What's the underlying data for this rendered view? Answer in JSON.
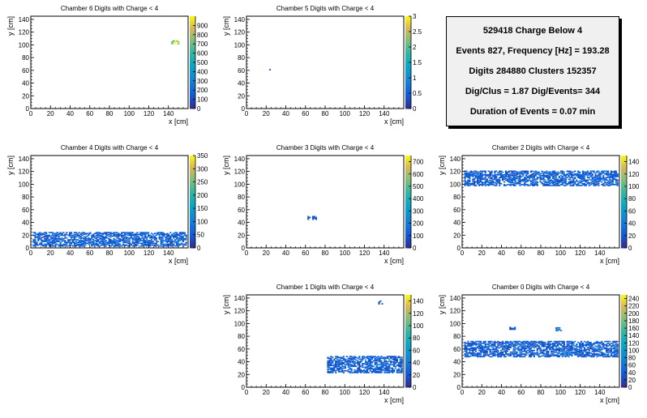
{
  "stats": {
    "line1": "529418 Charge Below 4",
    "line2": "Events 827, Frequency [Hz] = 193.28",
    "line3": "Digits 284880 Clusters 152357",
    "line4": "Dig/Clus = 1.87 Dig/Events= 344",
    "line5": "Duration of Events = 0.07 min"
  },
  "chart_data": [
    {
      "type": "heatmap",
      "title": "Chamber 6 Digits with Charge < 4",
      "xlabel": "x [cm]",
      "ylabel": "y [cm]",
      "xlim": [
        0,
        160
      ],
      "ylim": [
        0,
        145
      ],
      "xticks": [
        0,
        20,
        40,
        60,
        80,
        100,
        120,
        140
      ],
      "yticks": [
        0,
        20,
        40,
        60,
        80,
        100,
        120,
        140
      ],
      "zlim": [
        0,
        1000
      ],
      "zticks": [
        0,
        100,
        200,
        300,
        400,
        500,
        600,
        700,
        800,
        900
      ],
      "regions": [
        {
          "x": [
            143,
            150
          ],
          "y": [
            101,
            106
          ],
          "z": 800
        }
      ]
    },
    {
      "type": "heatmap",
      "title": "Chamber 5 Digits with Charge < 4",
      "xlabel": "x [cm]",
      "ylabel": "y [cm]",
      "xlim": [
        0,
        160
      ],
      "ylim": [
        0,
        145
      ],
      "xticks": [
        0,
        20,
        40,
        60,
        80,
        100,
        120,
        140
      ],
      "yticks": [
        0,
        20,
        40,
        60,
        80,
        100,
        120,
        140
      ],
      "zlim": [
        0,
        3
      ],
      "zticks": [
        0,
        0.5,
        1,
        1.5,
        2,
        2.5,
        3
      ],
      "regions": [
        {
          "x": [
            23,
            24
          ],
          "y": [
            60,
            62
          ],
          "z": 1
        }
      ]
    },
    {
      "type": "heatmap",
      "title": "Chamber 4 Digits with Charge < 4",
      "xlabel": "x [cm]",
      "ylabel": "y [cm]",
      "xlim": [
        0,
        160
      ],
      "ylim": [
        0,
        145
      ],
      "xticks": [
        0,
        20,
        40,
        60,
        80,
        100,
        120,
        140
      ],
      "yticks": [
        0,
        20,
        40,
        60,
        80,
        100,
        120,
        140
      ],
      "zlim": [
        0,
        350
      ],
      "zticks": [
        0,
        50,
        100,
        150,
        200,
        250,
        300,
        350
      ],
      "regions": [
        {
          "x": [
            2,
            158
          ],
          "y": [
            2,
            24
          ],
          "z": 60
        }
      ]
    },
    {
      "type": "heatmap",
      "title": "Chamber 3 Digits with Charge < 4",
      "xlabel": "x [cm]",
      "ylabel": "y [cm]",
      "xlim": [
        0,
        160
      ],
      "ylim": [
        0,
        145
      ],
      "xticks": [
        0,
        20,
        40,
        60,
        80,
        100,
        120,
        140
      ],
      "yticks": [
        0,
        20,
        40,
        60,
        80,
        100,
        120,
        140
      ],
      "zlim": [
        0,
        750
      ],
      "zticks": [
        0,
        100,
        200,
        300,
        400,
        500,
        600,
        700
      ],
      "regions": [
        {
          "x": [
            62,
            70
          ],
          "y": [
            44,
            49
          ],
          "z": 120
        }
      ]
    },
    {
      "type": "heatmap",
      "title": "Chamber 2 Digits with Charge < 4",
      "xlabel": "x [cm]",
      "ylabel": "y [cm]",
      "xlim": [
        0,
        160
      ],
      "ylim": [
        0,
        145
      ],
      "xticks": [
        0,
        20,
        40,
        60,
        80,
        100,
        120,
        140
      ],
      "yticks": [
        0,
        20,
        40,
        60,
        80,
        100,
        120,
        140
      ],
      "zlim": [
        0,
        150
      ],
      "zticks": [
        0,
        20,
        40,
        60,
        80,
        100,
        120,
        140
      ],
      "regions": [
        {
          "x": [
            2,
            158
          ],
          "y": [
            97,
            120
          ],
          "z": 25
        }
      ]
    },
    {
      "type": "heatmap",
      "title": "Chamber 1 Digits with Charge < 4",
      "xlabel": "x [cm]",
      "ylabel": "y [cm]",
      "xlim": [
        0,
        160
      ],
      "ylim": [
        0,
        145
      ],
      "xticks": [
        0,
        20,
        40,
        60,
        80,
        100,
        120,
        140
      ],
      "yticks": [
        0,
        20,
        40,
        60,
        80,
        100,
        120,
        140
      ],
      "zlim": [
        0,
        150
      ],
      "zticks": [
        0,
        20,
        40,
        60,
        80,
        100,
        120,
        140
      ],
      "regions": [
        {
          "x": [
            82,
            158
          ],
          "y": [
            22,
            48
          ],
          "z": 25
        },
        {
          "x": [
            134,
            138
          ],
          "y": [
            130,
            135
          ],
          "z": 20
        }
      ]
    },
    {
      "type": "heatmap",
      "title": "Chamber 0 Digits with Charge < 4",
      "xlabel": "x [cm]",
      "ylabel": "y [cm]",
      "xlim": [
        0,
        160
      ],
      "ylim": [
        0,
        145
      ],
      "xticks": [
        0,
        20,
        40,
        60,
        80,
        100,
        120,
        140
      ],
      "yticks": [
        0,
        20,
        40,
        60,
        80,
        100,
        120,
        140
      ],
      "zlim": [
        0,
        250
      ],
      "zticks": [
        0,
        20,
        40,
        60,
        80,
        100,
        120,
        140,
        160,
        180,
        200,
        220,
        240
      ],
      "regions": [
        {
          "x": [
            2,
            158
          ],
          "y": [
            47,
            72
          ],
          "z": 40
        },
        {
          "x": [
            48,
            54
          ],
          "y": [
            90,
            94
          ],
          "z": 30
        },
        {
          "x": [
            95,
            100
          ],
          "y": [
            88,
            93
          ],
          "z": 60
        }
      ]
    }
  ]
}
